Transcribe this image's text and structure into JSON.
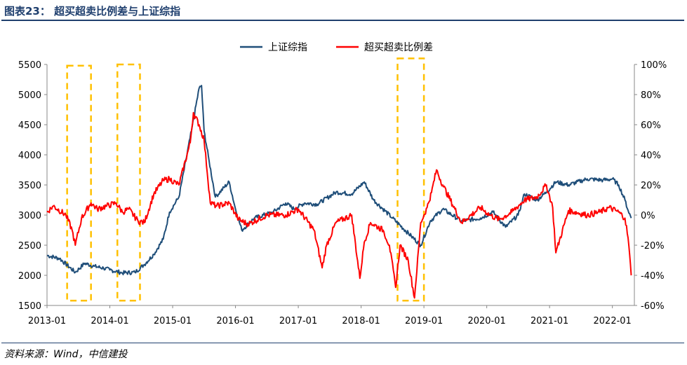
{
  "title": "图表23：  超买超卖比例差与上证综指",
  "source": "资料来源：Wind，中信建投",
  "colors": {
    "index_line": "#1f4e79",
    "diff_line": "#ff0000",
    "highlight_box": "#ffc000",
    "header_rule": "#1f3f6e"
  },
  "chart_data": {
    "type": "line",
    "title": "超买超卖比例差与上证综指",
    "legend": [
      "上证综指",
      "超买超卖比例差"
    ],
    "legend_position": "top-center",
    "x_ticks": [
      "2013-01",
      "2014-01",
      "2015-01",
      "2016-01",
      "2017-01",
      "2018-01",
      "2019-01",
      "2020-01",
      "2021-01",
      "2022-01"
    ],
    "y_left": {
      "ticks": [
        "1500",
        "2000",
        "2500",
        "3000",
        "3500",
        "4000",
        "4500",
        "5000",
        "5500"
      ],
      "range": [
        1500,
        5500
      ]
    },
    "y_right": {
      "ticks": [
        "-60%",
        "-40%",
        "-20%",
        "0%",
        "20%",
        "40%",
        "60%",
        "80%",
        "100%"
      ],
      "range": [
        -60,
        100
      ]
    },
    "series": [
      {
        "name": "上证综指",
        "axis": "left",
        "color": "#1f4e79",
        "x": [
          2013.0,
          2013.2,
          2013.45,
          2013.6,
          2013.75,
          2013.9,
          2014.0,
          2014.2,
          2014.4,
          2014.55,
          2014.7,
          2014.85,
          2014.95,
          2015.1,
          2015.3,
          2015.42,
          2015.46,
          2015.5,
          2015.58,
          2015.68,
          2015.9,
          2016.0,
          2016.1,
          2016.3,
          2016.6,
          2016.8,
          2016.93,
          2017.1,
          2017.3,
          2017.6,
          2017.85,
          2018.05,
          2018.2,
          2018.5,
          2018.8,
          2018.95,
          2019.1,
          2019.3,
          2019.6,
          2019.9,
          2020.1,
          2020.3,
          2020.5,
          2020.6,
          2020.8,
          2020.95,
          2021.1,
          2021.3,
          2021.6,
          2021.85,
          2022.0,
          2022.1,
          2022.2,
          2022.25,
          2022.3
        ],
        "values": [
          2330,
          2280,
          2050,
          2200,
          2150,
          2120,
          2090,
          2040,
          2050,
          2180,
          2350,
          2600,
          3050,
          3300,
          4400,
          5100,
          5150,
          4400,
          3900,
          3300,
          3550,
          3100,
          2750,
          2950,
          3050,
          3200,
          3100,
          3200,
          3180,
          3380,
          3350,
          3550,
          3250,
          2950,
          2650,
          2500,
          2900,
          3100,
          2900,
          2950,
          3050,
          2800,
          3000,
          3350,
          3250,
          3380,
          3550,
          3500,
          3600,
          3580,
          3600,
          3500,
          3250,
          3080,
          2950
        ]
      },
      {
        "name": "超买超卖比例差",
        "axis": "right",
        "color": "#ff0000",
        "unit": "%",
        "x": [
          2013.0,
          2013.1,
          2013.3,
          2013.4,
          2013.45,
          2013.55,
          2013.7,
          2013.8,
          2013.95,
          2014.1,
          2014.2,
          2014.3,
          2014.45,
          2014.55,
          2014.7,
          2014.85,
          2014.95,
          2015.1,
          2015.28,
          2015.33,
          2015.42,
          2015.5,
          2015.6,
          2015.7,
          2015.9,
          2016.05,
          2016.2,
          2016.5,
          2016.8,
          2017.0,
          2017.25,
          2017.38,
          2017.45,
          2017.6,
          2017.85,
          2017.98,
          2018.05,
          2018.15,
          2018.35,
          2018.45,
          2018.55,
          2018.62,
          2018.75,
          2018.85,
          2018.95,
          2019.05,
          2019.12,
          2019.2,
          2019.3,
          2019.6,
          2019.9,
          2020.05,
          2020.2,
          2020.4,
          2020.6,
          2020.8,
          2020.95,
          2021.05,
          2021.1,
          2021.3,
          2021.6,
          2021.8,
          2021.95,
          2022.1,
          2022.2,
          2022.25,
          2022.3
        ],
        "values": [
          2,
          6,
          0,
          -10,
          -20,
          -2,
          8,
          4,
          6,
          8,
          2,
          4,
          -4,
          -5,
          14,
          23,
          24,
          20,
          48,
          68,
          60,
          50,
          8,
          6,
          8,
          -3,
          -6,
          0,
          0,
          4,
          -10,
          -35,
          -20,
          -5,
          0,
          -42,
          -18,
          -5,
          -10,
          -20,
          -48,
          -20,
          -30,
          -55,
          -5,
          5,
          15,
          30,
          20,
          -5,
          5,
          0,
          -3,
          2,
          10,
          12,
          20,
          5,
          -25,
          3,
          0,
          2,
          5,
          2,
          -2,
          -15,
          -40
        ]
      }
    ],
    "highlight_boxes": [
      {
        "x_start": 2013.32,
        "x_end": 2013.7,
        "y_top": 5480,
        "y_bottom": 1580
      },
      {
        "x_start": 2014.12,
        "x_end": 2014.48,
        "y_top": 5500,
        "y_bottom": 1580
      },
      {
        "x_start": 2018.58,
        "x_end": 2019.0,
        "y_top": 5600,
        "y_bottom": 1580
      }
    ]
  }
}
